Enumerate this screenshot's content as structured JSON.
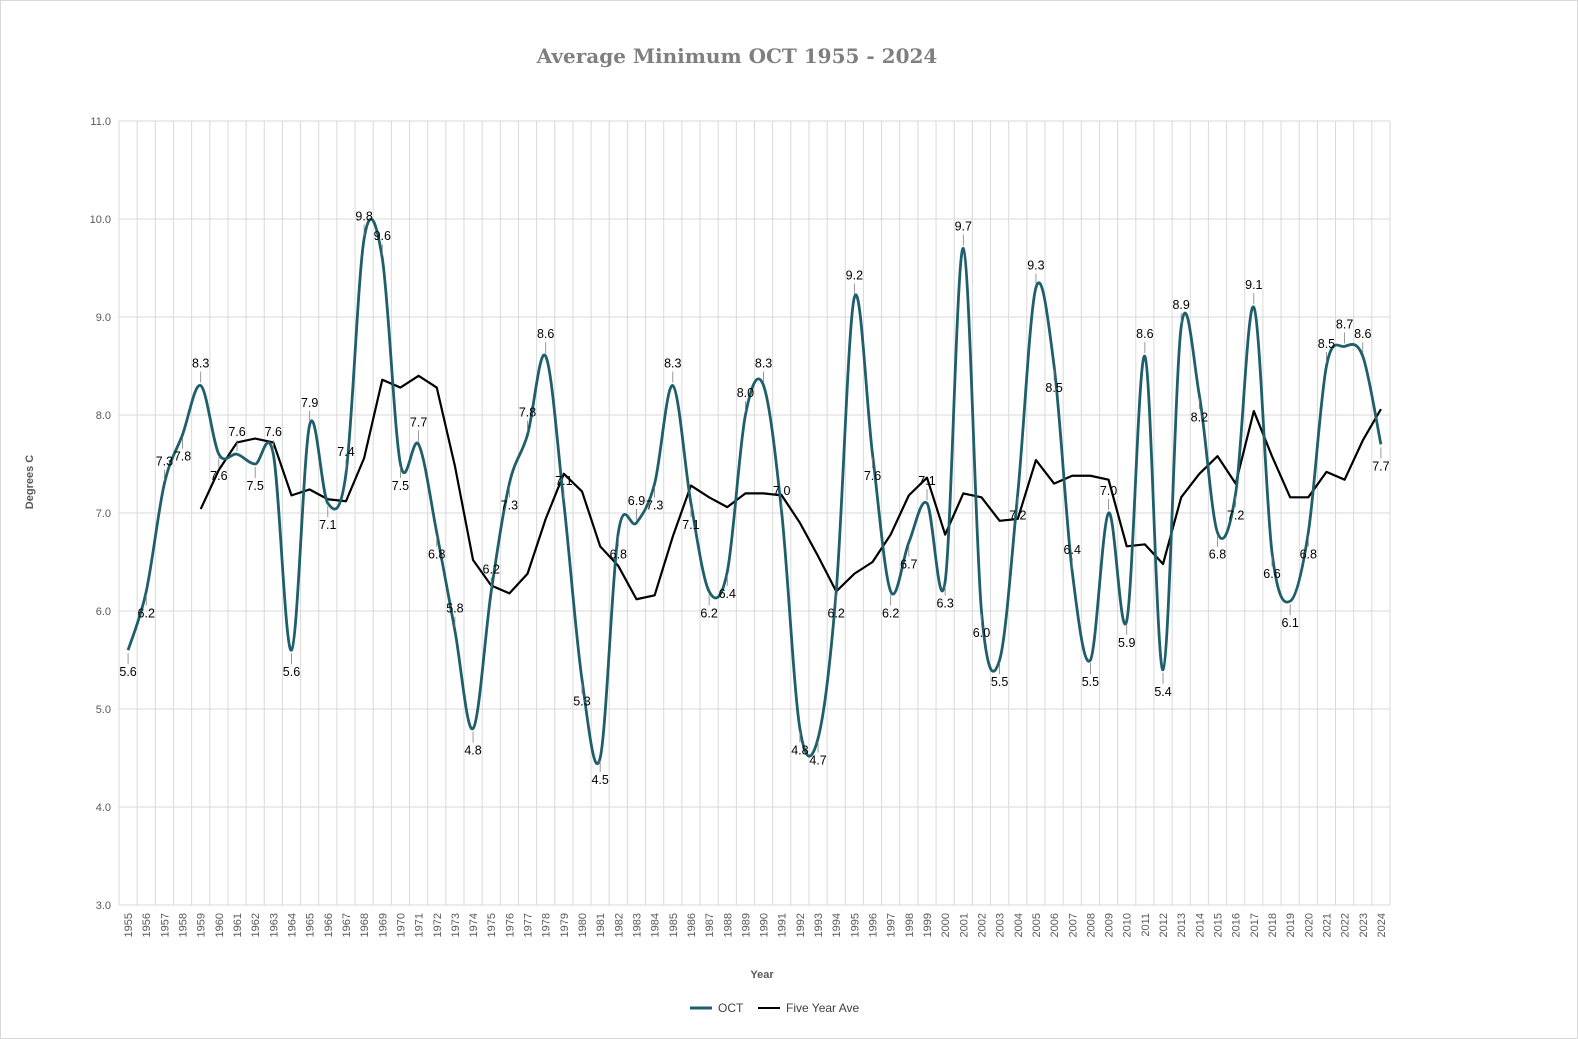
{
  "chart_data": {
    "type": "line",
    "title": "Average Minimum OCT 1955 - 2024",
    "xlabel": "Year",
    "ylabel": "Degrees C",
    "ylim": [
      3.0,
      11.0
    ],
    "y_ticks": [
      "3.0",
      "4.0",
      "5.0",
      "6.0",
      "7.0",
      "8.0",
      "9.0",
      "10.0",
      "11.0"
    ],
    "grid": true,
    "legend_position": "bottom",
    "x": [
      1955,
      1956,
      1957,
      1958,
      1959,
      1960,
      1961,
      1962,
      1963,
      1964,
      1965,
      1966,
      1967,
      1968,
      1969,
      1970,
      1971,
      1972,
      1973,
      1974,
      1975,
      1976,
      1977,
      1978,
      1979,
      1980,
      1981,
      1982,
      1983,
      1984,
      1985,
      1986,
      1987,
      1988,
      1989,
      1990,
      1991,
      1992,
      1993,
      1994,
      1995,
      1996,
      1997,
      1998,
      1999,
      2000,
      2001,
      2002,
      2003,
      2004,
      2005,
      2006,
      2007,
      2008,
      2009,
      2010,
      2011,
      2012,
      2013,
      2014,
      2015,
      2016,
      2017,
      2018,
      2019,
      2020,
      2021,
      2022,
      2023,
      2024
    ],
    "series": [
      {
        "name": "OCT",
        "color": "#1f5f6b",
        "values": [
          5.6,
          6.2,
          7.3,
          7.8,
          8.3,
          7.6,
          7.6,
          7.5,
          7.6,
          5.6,
          7.9,
          7.1,
          7.4,
          9.8,
          9.6,
          7.5,
          7.7,
          6.8,
          5.8,
          4.8,
          6.2,
          7.3,
          7.8,
          8.6,
          7.1,
          5.3,
          4.5,
          6.8,
          6.9,
          7.3,
          8.3,
          7.1,
          6.2,
          6.4,
          8.0,
          8.3,
          7.0,
          4.8,
          4.7,
          6.2,
          9.2,
          7.6,
          6.2,
          6.7,
          7.1,
          6.3,
          9.7,
          6.0,
          5.5,
          7.2,
          9.3,
          8.5,
          6.4,
          5.5,
          7.0,
          5.9,
          8.6,
          5.4,
          8.9,
          8.2,
          6.8,
          7.2,
          9.1,
          6.6,
          6.1,
          6.8,
          8.5,
          8.7,
          8.6,
          7.7
        ],
        "labels": [
          "5.6",
          "6.2",
          "7.3",
          "7.8",
          "8.3",
          "7.6",
          "7.6",
          "7.5",
          "7.6",
          "5.6",
          "7.9",
          "7.1",
          "7.4",
          "9.8",
          "9.6",
          "7.5",
          "7.7",
          "6.8",
          "5.8",
          "4.8",
          "6.2",
          "7.3",
          "7.8",
          "8.6",
          "7.1",
          "5.3",
          "4.5",
          "6.8",
          "6.9",
          "7.3",
          "8.3",
          "7.1",
          "6.2",
          "6.4",
          "8.0",
          "8.3",
          "7.0",
          "4.8",
          "4.7",
          "6.2",
          "9.2",
          "7.6",
          "6.2",
          "6.7",
          "7.1",
          "6.3",
          "9.7",
          "6.0",
          "5.5",
          "7.2",
          "9.3",
          "8.5",
          "6.4",
          "5.5",
          "7.0",
          "5.9",
          "8.6",
          "5.4",
          "8.9",
          "8.2",
          "6.8",
          "7.2",
          "9.1",
          "6.6",
          "6.1",
          "6.8",
          "8.5",
          "8.7",
          "8.6",
          "7.7"
        ]
      },
      {
        "name": "Five Year Ave",
        "color": "#000000",
        "values": [
          null,
          null,
          null,
          null,
          7.04,
          7.44,
          7.72,
          7.76,
          7.72,
          7.18,
          7.24,
          7.14,
          7.12,
          7.56,
          8.36,
          8.28,
          8.4,
          8.28,
          7.48,
          6.52,
          6.26,
          6.18,
          6.38,
          6.94,
          7.4,
          7.22,
          6.66,
          6.46,
          6.12,
          6.16,
          6.76,
          7.28,
          7.16,
          7.06,
          7.2,
          7.2,
          7.18,
          6.9,
          6.56,
          6.2,
          6.38,
          6.5,
          6.78,
          7.18,
          7.36,
          6.78,
          7.2,
          7.16,
          6.92,
          6.94,
          7.54,
          7.3,
          7.38,
          7.38,
          7.34,
          6.66,
          6.68,
          6.48,
          7.16,
          7.4,
          7.58,
          7.3,
          8.04,
          7.58,
          7.16,
          7.16,
          7.42,
          7.34,
          7.74,
          8.06
        ]
      }
    ]
  }
}
